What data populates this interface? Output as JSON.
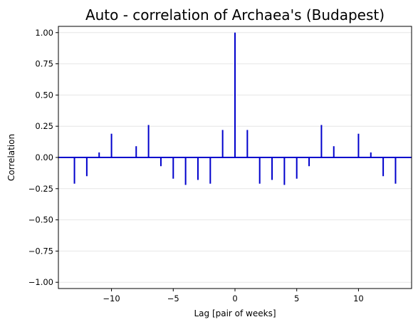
{
  "chart_data": {
    "type": "bar",
    "title": "Auto - correlation of Archaea's (Budapest)",
    "xlabel": "Lag [pair of weeks]",
    "ylabel": "Correlation",
    "xlim": [
      -14.3,
      14.3
    ],
    "ylim": [
      -1.05,
      1.05
    ],
    "xticks": [
      -10,
      -5,
      0,
      5,
      10
    ],
    "xtick_labels": [
      "−10",
      "−5",
      "0",
      "5",
      "10"
    ],
    "yticks": [
      -1.0,
      -0.75,
      -0.5,
      -0.25,
      0.0,
      0.25,
      0.5,
      0.75,
      1.0
    ],
    "ytick_labels": [
      "−1.00",
      "−0.75",
      "−0.50",
      "−0.25",
      "0.00",
      "0.25",
      "0.50",
      "0.75",
      "1.00"
    ],
    "grid": "horizontal",
    "bar_color": "#0000cc",
    "baseline_color": "#0000cc",
    "series": [
      {
        "x": [
          -13,
          -12,
          -11,
          -10,
          -8,
          -7,
          -6,
          -5,
          -4,
          -3,
          -2,
          -1,
          0,
          1,
          2,
          3,
          4,
          5,
          6,
          7,
          8,
          10,
          11,
          12,
          13
        ],
        "values": [
          -0.21,
          -0.15,
          0.04,
          0.19,
          0.09,
          0.26,
          -0.07,
          -0.17,
          -0.22,
          -0.18,
          -0.21,
          0.22,
          1.0,
          0.22,
          -0.21,
          -0.18,
          -0.22,
          -0.17,
          -0.07,
          0.26,
          0.09,
          0.19,
          0.04,
          -0.15,
          -0.21
        ]
      }
    ]
  }
}
